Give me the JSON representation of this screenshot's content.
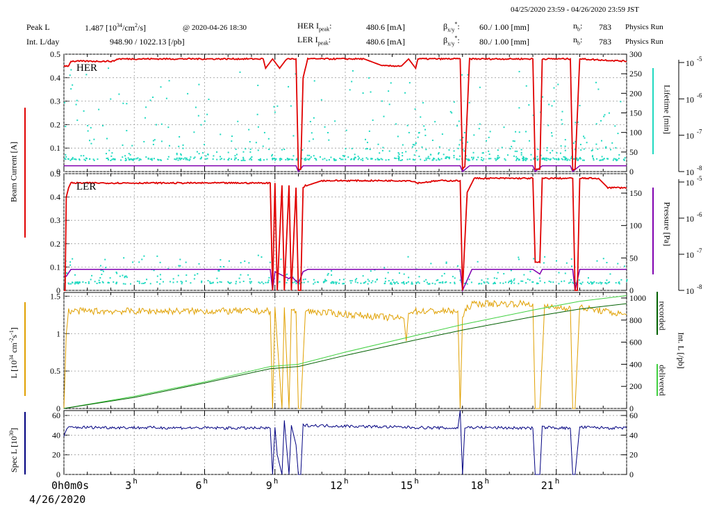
{
  "header": {
    "range": "04/25/2020 23:59 - 04/26/2020 23:59 JST",
    "peak_l_label": "Peak L",
    "peak_l_value": "1.487",
    "peak_l_unit_pre": "[10",
    "peak_l_unit_exp": "34",
    "peak_l_unit_mid": "/cm",
    "peak_l_unit_exp2": "2",
    "peak_l_unit_post": "/s]",
    "peak_time": "@ 2020-04-26 18:30",
    "intl_label": "Int. L/day",
    "intl_value": "948.90 / 1022.13 [/pb]",
    "her_ipeak_label": "HER I",
    "her_ipeak_sub": "peak",
    "her_ipeak_value": "480.6 [mA]",
    "ler_ipeak_label": "LER I",
    "ler_ipeak_sub": "peak",
    "ler_ipeak_value": "480.6 [mA]",
    "beta_label": "β",
    "beta_sub": "x/y",
    "beta_sup": "*",
    "her_beta_value": "60./ 1.00 [mm]",
    "ler_beta_value": "80./ 1.00 [mm]",
    "nb_label": "n",
    "nb_sub": "b",
    "her_nb": "783",
    "ler_nb": "783",
    "her_mode": "Physics Run",
    "ler_mode": "Physics Run"
  },
  "colors": {
    "current": "#e00000",
    "lifetime": "#1fd9c0",
    "pressure": "#8000b0",
    "luminosity": "#e0a000",
    "recorded": "#006000",
    "delivered": "#40d040",
    "specl": "#000080",
    "grid": "#999999"
  },
  "chart_data": [
    {
      "type": "line",
      "panel": "HER",
      "label": "HER",
      "ylabel": "Beam Current [A]",
      "ylim": [
        0,
        0.5
      ],
      "yticks": [
        "0",
        "0.1",
        "0.2",
        "0.3",
        "0.4",
        "0.5"
      ],
      "right_ylabel": "Lifetime [min]",
      "right_ylim": [
        0,
        300
      ],
      "right_yticks": [
        "0",
        "50",
        "100",
        "150",
        "200",
        "250",
        "300"
      ],
      "far_right_yticks": [
        "10",
        "10",
        "10",
        "10"
      ],
      "far_right_exps": [
        "-8",
        "-7",
        "-6",
        "-5"
      ],
      "series": [
        {
          "role": "current",
          "x": [
            0,
            0.2,
            0.3,
            2.1,
            2.3,
            8.5,
            8.6,
            8.9,
            9.2,
            9.5,
            9.9,
            10.0,
            10.1,
            10.2,
            10.4,
            12.8,
            13.6,
            14.4,
            14.7,
            15.0,
            15.1,
            16.9,
            17.0,
            17.1,
            17.3,
            20.0,
            20.1,
            20.3,
            20.4,
            20.8,
            21.6,
            21.7,
            21.8,
            22.0,
            24
          ],
          "y": [
            0.45,
            0.45,
            0.47,
            0.47,
            0.48,
            0.48,
            0.44,
            0.48,
            0.44,
            0.48,
            0.48,
            0.01,
            0.01,
            0.4,
            0.48,
            0.48,
            0.45,
            0.45,
            0.48,
            0.44,
            0.48,
            0.48,
            0.01,
            0.02,
            0.48,
            0.48,
            0.01,
            0.01,
            0.48,
            0.48,
            0.48,
            0.01,
            0.01,
            0.48,
            0.47
          ]
        },
        {
          "role": "pressure",
          "x": [
            0,
            9.9,
            10.0,
            10.2,
            16.9,
            17.0,
            17.3,
            20.0,
            20.1,
            20.4,
            21.6,
            21.7,
            22.0,
            24
          ],
          "y": [
            0.025,
            0.025,
            0.0,
            0.025,
            0.025,
            0.0,
            0.025,
            0.025,
            0.0,
            0.025,
            0.025,
            0.0,
            0.025,
            0.025
          ]
        },
        {
          "role": "lifetime",
          "x": [
            0,
            24
          ],
          "y": [
            0.05,
            0.05
          ]
        }
      ]
    },
    {
      "type": "line",
      "panel": "LER",
      "label": "LER",
      "ylim": [
        0,
        0.5
      ],
      "yticks": [
        "0",
        "0.1",
        "0.2",
        "0.3",
        "0.4",
        "0.5"
      ],
      "right_ylabel": "Pressure [Pa]",
      "right_ylim": [
        0,
        180
      ],
      "right_yticks": [
        "0",
        "50",
        "100",
        "150"
      ],
      "far_right_yticks": [
        "10",
        "10",
        "10",
        "10"
      ],
      "far_right_exps": [
        "-8",
        "-7",
        "-6",
        "-5"
      ],
      "series": [
        {
          "role": "current",
          "x": [
            0,
            0.05,
            0.1,
            0.2,
            0.3,
            8.7,
            8.8,
            8.9,
            9.0,
            9.1,
            9.3,
            9.4,
            9.6,
            9.7,
            9.9,
            10.0,
            10.1,
            10.2,
            10.3,
            10.4,
            11.0,
            11.5,
            12.0,
            14.0,
            14.8,
            15.1,
            16.0,
            16.9,
            17.0,
            17.2,
            17.4,
            17.5,
            18.0,
            20.0,
            20.1,
            20.3,
            20.4,
            20.8,
            21.7,
            21.8,
            21.9,
            22.0,
            22.8,
            23.2,
            24
          ],
          "y": [
            0.0,
            0.0,
            0.4,
            0.44,
            0.46,
            0.46,
            0.46,
            0.0,
            0.46,
            0.0,
            0.45,
            0.0,
            0.45,
            0.0,
            0.44,
            0.0,
            0.0,
            0.44,
            0.45,
            0.45,
            0.47,
            0.47,
            0.47,
            0.47,
            0.47,
            0.46,
            0.47,
            0.47,
            0.0,
            0.42,
            0.46,
            0.48,
            0.48,
            0.48,
            0.12,
            0.12,
            0.48,
            0.48,
            0.48,
            0.0,
            0.0,
            0.48,
            0.48,
            0.44,
            0.44
          ]
        },
        {
          "role": "pressure",
          "x": [
            0,
            0.1,
            0.3,
            8.8,
            8.9,
            9.0,
            9.6,
            9.7,
            10.0,
            10.2,
            10.4,
            16.9,
            17.0,
            17.4,
            20.0,
            20.3,
            20.4,
            21.7,
            21.8,
            22.0,
            24
          ],
          "y": [
            0.06,
            0.06,
            0.09,
            0.09,
            0.0,
            0.08,
            0.05,
            0.06,
            0.03,
            0.08,
            0.09,
            0.09,
            0.0,
            0.09,
            0.09,
            0.07,
            0.09,
            0.09,
            0.0,
            0.09,
            0.09
          ]
        },
        {
          "role": "lifetime",
          "x": [
            0,
            24
          ],
          "y": [
            0.03,
            0.03
          ]
        }
      ]
    },
    {
      "type": "line",
      "panel": "Luminosity",
      "ylabel": "L [10^34 cm^-2 s^-1]",
      "ylim": [
        0,
        1.55
      ],
      "yticks": [
        "0",
        "0.5",
        "1",
        "1.5"
      ],
      "right_ylabel": "Int. L [/pb]",
      "right_ylim": [
        0,
        1050
      ],
      "right_yticks": [
        "0",
        "200",
        "400",
        "600",
        "800",
        "1000"
      ],
      "right_labels": [
        "recorded",
        "delivered"
      ],
      "series": [
        {
          "role": "luminosity",
          "x": [
            0,
            0.1,
            0.2,
            8.8,
            8.9,
            9.0,
            9.3,
            9.4,
            9.6,
            9.7,
            9.9,
            10.0,
            10.1,
            10.3,
            14.5,
            14.6,
            14.7,
            16.8,
            16.9,
            17.0,
            17.2,
            17.5,
            20.0,
            20.1,
            20.3,
            20.5,
            21.6,
            21.7,
            21.8,
            22.0,
            24
          ],
          "y": [
            0.0,
            1.0,
            1.3,
            1.3,
            0.0,
            1.35,
            0.0,
            1.35,
            0.0,
            1.3,
            1.3,
            0.0,
            0.0,
            1.3,
            1.2,
            0.9,
            1.3,
            1.3,
            0.0,
            1.2,
            1.35,
            1.4,
            1.4,
            0.0,
            0.0,
            1.35,
            1.35,
            0.0,
            0.0,
            1.35,
            1.25
          ]
        },
        {
          "role": "delivered",
          "x": [
            0,
            3,
            6,
            8.8,
            10,
            12,
            15,
            17,
            20,
            22,
            24
          ],
          "y": [
            0,
            110,
            240,
            380,
            400,
            510,
            660,
            760,
            890,
            970,
            1022
          ]
        },
        {
          "role": "recorded",
          "x": [
            0,
            3,
            6,
            8.8,
            10,
            12,
            15,
            17,
            20,
            22,
            24
          ],
          "y": [
            0,
            100,
            230,
            360,
            380,
            480,
            620,
            710,
            830,
            900,
            949
          ]
        }
      ]
    },
    {
      "type": "line",
      "panel": "SpecL",
      "ylabel": "Spec L [10^30]",
      "ylim": [
        0,
        65
      ],
      "yticks": [
        "0",
        "20",
        "40",
        "60"
      ],
      "right_yticks": [
        "0",
        "20",
        "40",
        "60"
      ],
      "series": [
        {
          "role": "specl",
          "x": [
            0,
            0.2,
            8.8,
            8.9,
            9.0,
            9.1,
            9.3,
            9.4,
            9.6,
            9.7,
            9.9,
            10.0,
            10.1,
            10.2,
            16.8,
            16.9,
            17.0,
            17.1,
            20.0,
            20.1,
            20.3,
            20.4,
            21.6,
            21.7,
            21.8,
            22.0,
            24
          ],
          "y": [
            40,
            48,
            47,
            0,
            48,
            20,
            0,
            55,
            0,
            50,
            30,
            0,
            0,
            50,
            47,
            65,
            0,
            48,
            47,
            0,
            0,
            48,
            47,
            0,
            0,
            48,
            47
          ]
        }
      ]
    }
  ],
  "xaxis": {
    "ticks": [
      "0",
      "3",
      "6",
      "9",
      "12",
      "15",
      "18",
      "21"
    ],
    "tick_suffix": "h",
    "first_tick": "0h0m0s",
    "date": "4/26/2020",
    "xlim": [
      0,
      24
    ]
  }
}
